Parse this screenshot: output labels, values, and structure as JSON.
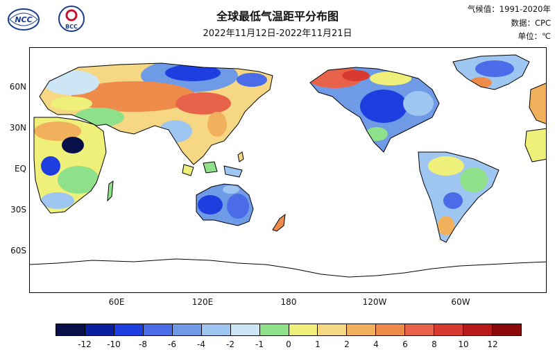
{
  "header": {
    "title": "全球最低气温距平分布图",
    "subtitle": "2022年11月12日-2022年11月21日",
    "baseline": "气候值：1991-2020年",
    "source": "数据：CPC",
    "unit": "单位：℃"
  },
  "logos": [
    {
      "name": "NCC",
      "text": "NCC"
    },
    {
      "name": "BCC",
      "text": "BCC"
    }
  ],
  "axes": {
    "lat_labels": [
      "60N",
      "30N",
      "EQ",
      "30S",
      "60S"
    ],
    "lon_labels": [
      "60E",
      "120E",
      "180",
      "120W",
      "60W"
    ]
  },
  "legend": {
    "labels": [
      "-12",
      "-10",
      "-8",
      "-6",
      "-4",
      "-2",
      "-1",
      "0",
      "1",
      "2",
      "4",
      "6",
      "8",
      "10",
      "12"
    ],
    "colors": [
      "#08104a",
      "#0a1fa0",
      "#1f3ee0",
      "#4a6ce8",
      "#6f9ae6",
      "#9ec6f0",
      "#cde6f6",
      "#8ee08a",
      "#eef07a",
      "#f6d784",
      "#f0b05c",
      "#ee8a4a",
      "#e8624a",
      "#d83a30",
      "#b81a1a",
      "#8a0a0a"
    ]
  }
}
